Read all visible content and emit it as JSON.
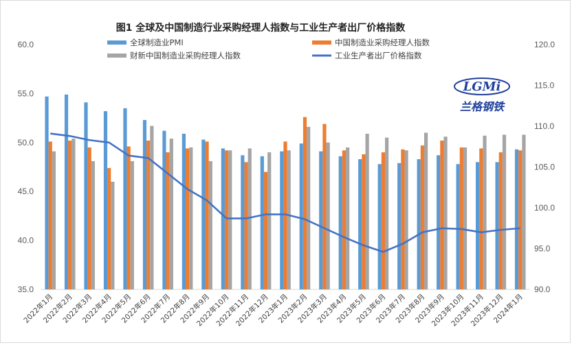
{
  "chart_data": {
    "type": "bar",
    "title": "图1 全球及中国制造行业采购经理人指数与工业生产者出厂价格指数",
    "categories": [
      "2022年1月",
      "2022年2月",
      "2022年3月",
      "2022年4月",
      "2022年5月",
      "2022年6月",
      "2022年7月",
      "2022年8月",
      "2022年9月",
      "2022年10月",
      "2022年11月",
      "2022年12月",
      "2023年1月",
      "2023年2月",
      "2023年3月",
      "2023年4月",
      "2023年5月",
      "2023年6月",
      "2023年7月",
      "2023年8月",
      "2023年9月",
      "2023年10月",
      "2023年11月",
      "2023年12月",
      "2024年1月"
    ],
    "series": [
      {
        "name": "全球制造业PMI",
        "type": "bar",
        "axis": "left",
        "color": "#5b9bd5",
        "values": [
          54.7,
          54.9,
          54.1,
          53.2,
          53.5,
          52.3,
          51.2,
          50.9,
          50.3,
          49.4,
          48.7,
          48.6,
          49.1,
          49.9,
          49.1,
          48.6,
          48.3,
          47.8,
          47.9,
          48.3,
          48.7,
          47.8,
          48.0,
          48.0,
          49.3
        ]
      },
      {
        "name": "中国制造业采购经理人指数",
        "type": "bar",
        "axis": "left",
        "color": "#ed7d31",
        "values": [
          50.1,
          50.2,
          49.5,
          47.4,
          49.6,
          50.2,
          49.0,
          49.4,
          50.1,
          49.2,
          48.0,
          47.0,
          50.1,
          52.6,
          51.9,
          49.2,
          48.8,
          49.0,
          49.3,
          49.7,
          50.2,
          49.5,
          49.4,
          49.0,
          49.2
        ]
      },
      {
        "name": "财新中国制造业采购经理人指数",
        "type": "bar",
        "axis": "left",
        "color": "#a5a5a5",
        "values": [
          49.1,
          50.4,
          48.1,
          46.0,
          48.1,
          51.7,
          50.4,
          49.5,
          48.1,
          49.2,
          49.4,
          49.0,
          49.2,
          51.6,
          50.0,
          49.5,
          50.9,
          50.5,
          49.2,
          51.0,
          50.6,
          49.5,
          50.7,
          50.8,
          50.8
        ]
      },
      {
        "name": "工业生产者出厂价格指数",
        "type": "line",
        "axis": "right",
        "color": "#4472c4",
        "values": [
          109.1,
          108.8,
          108.3,
          108.0,
          106.4,
          106.1,
          104.2,
          102.3,
          100.9,
          98.7,
          98.7,
          99.2,
          99.2,
          98.6,
          97.5,
          96.4,
          95.4,
          94.6,
          95.6,
          97.0,
          97.5,
          97.4,
          97.0,
          97.3,
          97.5
        ]
      }
    ],
    "left_axis": {
      "ylim": [
        35.0,
        60.0
      ],
      "ticks": [
        "35.0",
        "40.0",
        "45.0",
        "50.0",
        "55.0",
        "60.0"
      ]
    },
    "right_axis": {
      "ylim": [
        90.0,
        120.0
      ],
      "ticks": [
        "90.0",
        "95.0",
        "100.0",
        "105.0",
        "110.0",
        "115.0",
        "120.0"
      ]
    },
    "grid": false,
    "legend": "top"
  },
  "logo": {
    "mark": "LGMi",
    "name": "兰格钢铁"
  },
  "colors": {
    "logo_blue": "#1f3f9a",
    "logo_red": "#d42a2a"
  }
}
